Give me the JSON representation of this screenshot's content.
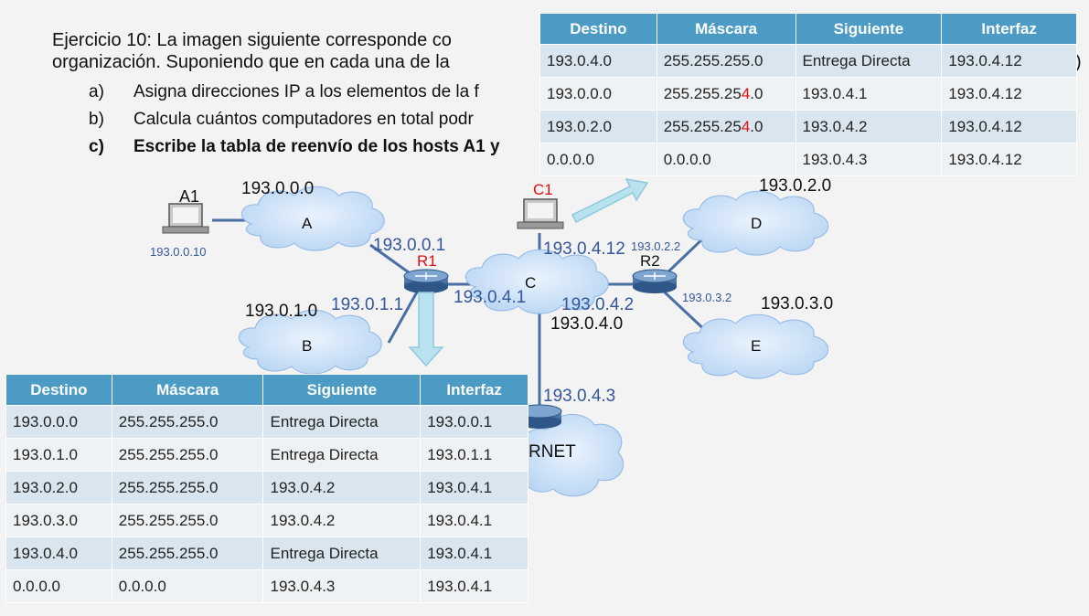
{
  "exercise": {
    "line1": "Ejercicio 10: La imagen siguiente corresponde co",
    "line2": "organización. Suponiendo que en cada una de la",
    "trail": ")",
    "items": [
      {
        "letter": "a)",
        "text": "Asigna direcciones IP a los elementos de la f"
      },
      {
        "letter": "b)",
        "text": "Calcula cuántos computadores en total podr"
      },
      {
        "letter": "c)",
        "text": "Escribe la tabla de reenvío de los hosts A1 y"
      }
    ]
  },
  "colors": {
    "header": "#4b9bc4",
    "link": "#4a6fa5",
    "cloud": "#cfe2f8",
    "arrow": "#b9e2ef",
    "label_red": "#e01010",
    "label_blue": "#34569a"
  },
  "network": {
    "networks": [
      {
        "label": "A",
        "address": "193.0.0.0"
      },
      {
        "label": "B",
        "address": "193.0.1.0"
      },
      {
        "label": "C",
        "address": "193.0.4.0"
      },
      {
        "label": "D",
        "address": "193.0.2.0"
      },
      {
        "label": "E",
        "address": "193.0.3.0"
      },
      {
        "label": "RNET"
      }
    ],
    "hosts": [
      {
        "label": "A1",
        "ip": "193.0.0.10"
      },
      {
        "label": "C1"
      }
    ],
    "routers": [
      {
        "label": "R1",
        "ips": [
          "193.0.0.1",
          "193.0.1.1",
          "193.0.4.1"
        ]
      },
      {
        "label": "R2",
        "ips": [
          "193.0.2.2",
          "193.0.3.2",
          "193.0.4.2"
        ]
      },
      {
        "ips": [
          "193.0.4.3"
        ]
      }
    ],
    "c1_ip": "193.0.4.12"
  },
  "table_c1": {
    "headers": [
      "Destino",
      "Máscara",
      "Siguiente",
      "Interfaz"
    ],
    "rows": [
      [
        "193.0.4.0",
        "255.255.255.0",
        "Entrega Directa",
        "193.0.4.12"
      ],
      [
        "193.0.0.0",
        "255.255.254.0",
        "193.0.4.1",
        "193.0.4.12"
      ],
      [
        "193.0.2.0",
        "255.255.254.0",
        "193.0.4.2",
        "193.0.4.12"
      ],
      [
        "0.0.0.0",
        "0.0.0.0",
        "193.0.4.3",
        "193.0.4.12"
      ]
    ]
  },
  "table_r1": {
    "headers": [
      "Destino",
      "Máscara",
      "Siguiente",
      "Interfaz"
    ],
    "rows": [
      [
        "193.0.0.0",
        "255.255.255.0",
        "Entrega Directa",
        "193.0.0.1"
      ],
      [
        "193.0.1.0",
        "255.255.255.0",
        "Entrega Directa",
        "193.0.1.1"
      ],
      [
        "193.0.2.0",
        "255.255.255.0",
        "193.0.4.2",
        "193.0.4.1"
      ],
      [
        "193.0.3.0",
        "255.255.255.0",
        "193.0.4.2",
        "193.0.4.1"
      ],
      [
        "193.0.4.0",
        "255.255.255.0",
        "Entrega Directa",
        "193.0.4.1"
      ],
      [
        "0.0.0.0",
        "0.0.0.0",
        "193.0.4.3",
        "193.0.4.1"
      ]
    ]
  }
}
